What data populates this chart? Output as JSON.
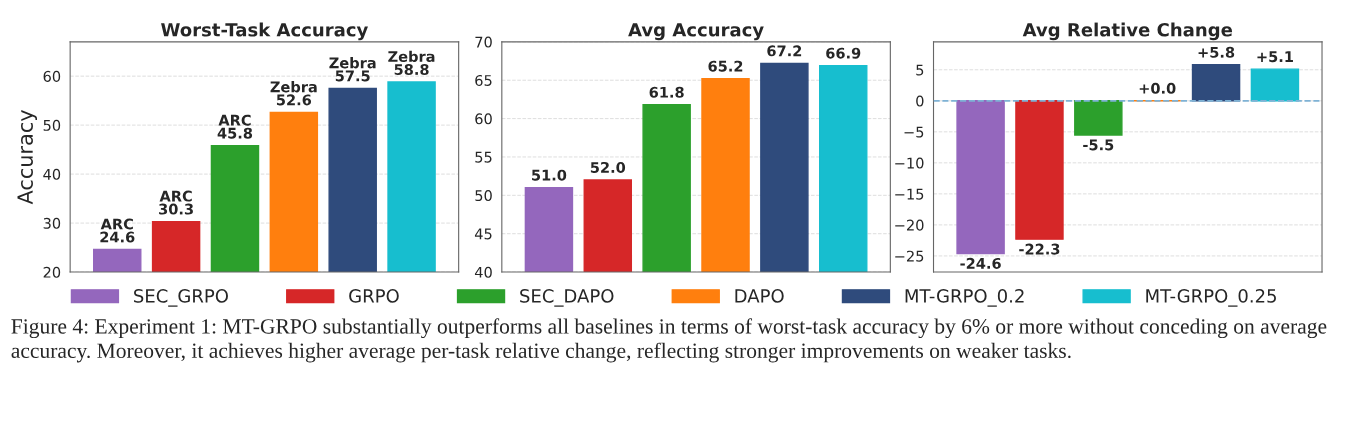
{
  "chart_data": [
    {
      "type": "bar",
      "title": "Worst-Task Accuracy",
      "ylabel": "Accuracy",
      "categories": [
        null
      ],
      "ylim": [
        20,
        67
      ],
      "yticks": [
        20,
        30,
        40,
        50,
        60
      ],
      "grid": "y",
      "legend": "bottom",
      "series": [
        {
          "name": "SEC_GRPO",
          "color": "#9467bd",
          "values": [
            24.6
          ],
          "value_labels": [
            "ARC\n24.6"
          ]
        },
        {
          "name": "GRPO",
          "color": "#d62728",
          "values": [
            30.3
          ],
          "value_labels": [
            "ARC\n30.3"
          ]
        },
        {
          "name": "SEC_DAPO",
          "color": "#2ca02c",
          "values": [
            45.8
          ],
          "value_labels": [
            "ARC\n45.8"
          ]
        },
        {
          "name": "DAPO",
          "color": "#ff7f0e",
          "values": [
            52.6
          ],
          "value_labels": [
            "Zebra\n52.6"
          ]
        },
        {
          "name": "MT-GRPO_0.2",
          "color": "#2f4b7c",
          "values": [
            57.5
          ],
          "value_labels": [
            "Zebra\n57.5"
          ]
        },
        {
          "name": "MT-GRPO_0.25",
          "color": "#17becf",
          "values": [
            58.8
          ],
          "value_labels": [
            "Zebra\n58.8"
          ]
        }
      ],
      "annotations": [
        "Figure 4: Experiment 1: MT-GRPO substantially outperforms all baselines in terms of worst-task accuracy by 6% or more without conceding on average accuracy. Moreover, it achieves higher average per-task relative change, reflecting stronger improvements on weaker tasks."
      ]
    },
    {
      "type": "bar",
      "title": "Avg Accuracy",
      "categories": [
        null
      ],
      "ylim": [
        40,
        70
      ],
      "yticks": [
        40,
        45,
        50,
        55,
        60,
        65,
        70
      ],
      "grid": "y",
      "series": [
        {
          "color": "#9467bd",
          "values": [
            51.0
          ],
          "value_labels": [
            "51.0"
          ]
        },
        {
          "color": "#d62728",
          "values": [
            52.0
          ],
          "value_labels": [
            "52.0"
          ]
        },
        {
          "color": "#2ca02c",
          "values": [
            61.8
          ],
          "value_labels": [
            "61.8"
          ]
        },
        {
          "color": "#ff7f0e",
          "values": [
            65.2
          ],
          "value_labels": [
            "65.2"
          ]
        },
        {
          "color": "#2f4b7c",
          "values": [
            67.2
          ],
          "value_labels": [
            "67.2"
          ]
        },
        {
          "color": "#17becf",
          "values": [
            66.9
          ],
          "value_labels": [
            "66.9"
          ]
        }
      ]
    },
    {
      "type": "bar",
      "title": "Avg Relative Change",
      "categories": [
        null
      ],
      "ylim": [
        -27.6,
        9.5
      ],
      "yticks": [
        {
          "value": -25,
          "label": "−25"
        },
        {
          "value": -20,
          "label": "−20"
        },
        {
          "value": -15,
          "label": "−15"
        },
        {
          "value": -10,
          "label": "−10"
        },
        {
          "value": -5,
          "label": "−5"
        },
        0,
        5
      ],
      "grid": "y",
      "ref_lines": [
        {
          "axis": "y",
          "value": 0,
          "color": "#7fb2d5",
          "line_style": "dashed"
        }
      ],
      "series": [
        {
          "color": "#9467bd",
          "values": [
            -24.6
          ],
          "value_labels": [
            "-24.6"
          ]
        },
        {
          "color": "#d62728",
          "values": [
            -22.3
          ],
          "value_labels": [
            "-22.3"
          ]
        },
        {
          "color": "#2ca02c",
          "values": [
            -5.5
          ],
          "value_labels": [
            "-5.5"
          ]
        },
        {
          "color": "#ff7f0e",
          "values": [
            0.0
          ],
          "value_labels": [
            "+0.0"
          ]
        },
        {
          "color": "#2f4b7c",
          "values": [
            5.8
          ],
          "value_labels": [
            "+5.8"
          ]
        },
        {
          "color": "#17becf",
          "values": [
            5.1
          ],
          "value_labels": [
            "+5.1"
          ]
        }
      ]
    }
  ]
}
